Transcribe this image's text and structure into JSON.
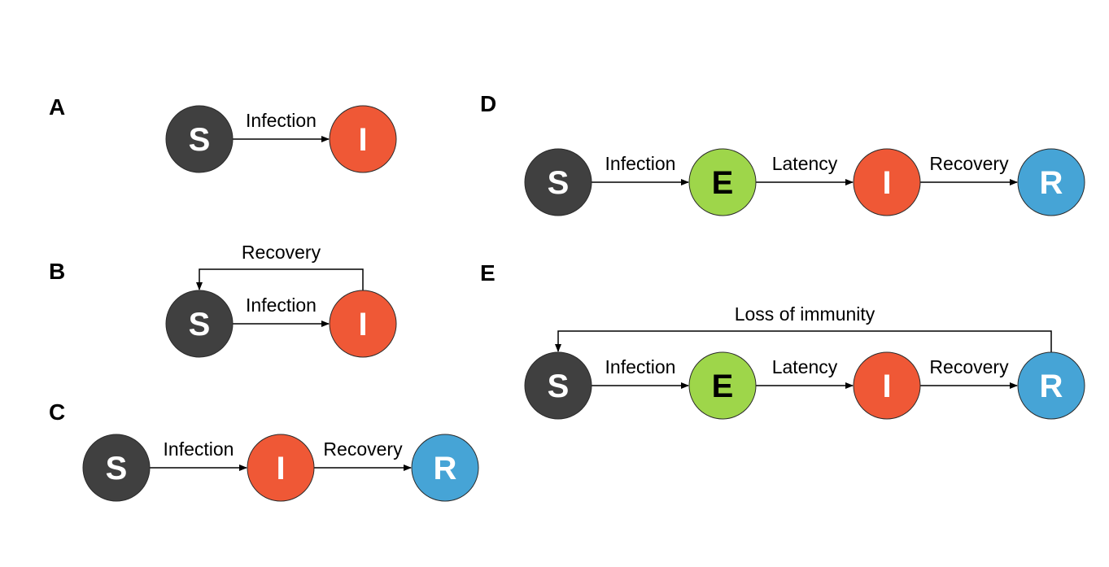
{
  "colors": {
    "S": "#404040",
    "E": "#9ed64a",
    "I": "#ef5836",
    "R": "#46a4d6",
    "text_light": "#ffffff",
    "text_dark": "#000000"
  },
  "panels": [
    {
      "letter": "A",
      "nodes": [
        {
          "id": "S",
          "label": "S"
        },
        {
          "id": "I",
          "label": "I"
        }
      ],
      "edges": [
        {
          "from": "S",
          "to": "I",
          "label": "Infection"
        }
      ]
    },
    {
      "letter": "B",
      "nodes": [
        {
          "id": "S",
          "label": "S"
        },
        {
          "id": "I",
          "label": "I"
        }
      ],
      "edges": [
        {
          "from": "S",
          "to": "I",
          "label": "Infection"
        },
        {
          "from": "I",
          "to": "S",
          "label": "Recovery",
          "feedback": true
        }
      ]
    },
    {
      "letter": "C",
      "nodes": [
        {
          "id": "S",
          "label": "S"
        },
        {
          "id": "I",
          "label": "I"
        },
        {
          "id": "R",
          "label": "R"
        }
      ],
      "edges": [
        {
          "from": "S",
          "to": "I",
          "label": "Infection"
        },
        {
          "from": "I",
          "to": "R",
          "label": "Recovery"
        }
      ]
    },
    {
      "letter": "D",
      "nodes": [
        {
          "id": "S",
          "label": "S"
        },
        {
          "id": "E",
          "label": "E"
        },
        {
          "id": "I",
          "label": "I"
        },
        {
          "id": "R",
          "label": "R"
        }
      ],
      "edges": [
        {
          "from": "S",
          "to": "E",
          "label": "Infection"
        },
        {
          "from": "E",
          "to": "I",
          "label": "Latency"
        },
        {
          "from": "I",
          "to": "R",
          "label": "Recovery"
        }
      ]
    },
    {
      "letter": "E",
      "nodes": [
        {
          "id": "S",
          "label": "S"
        },
        {
          "id": "E",
          "label": "E"
        },
        {
          "id": "I",
          "label": "I"
        },
        {
          "id": "R",
          "label": "R"
        }
      ],
      "edges": [
        {
          "from": "S",
          "to": "E",
          "label": "Infection"
        },
        {
          "from": "E",
          "to": "I",
          "label": "Latency"
        },
        {
          "from": "I",
          "to": "R",
          "label": "Recovery"
        },
        {
          "from": "R",
          "to": "S",
          "label": "Loss of immunity",
          "feedback": true
        }
      ]
    }
  ]
}
